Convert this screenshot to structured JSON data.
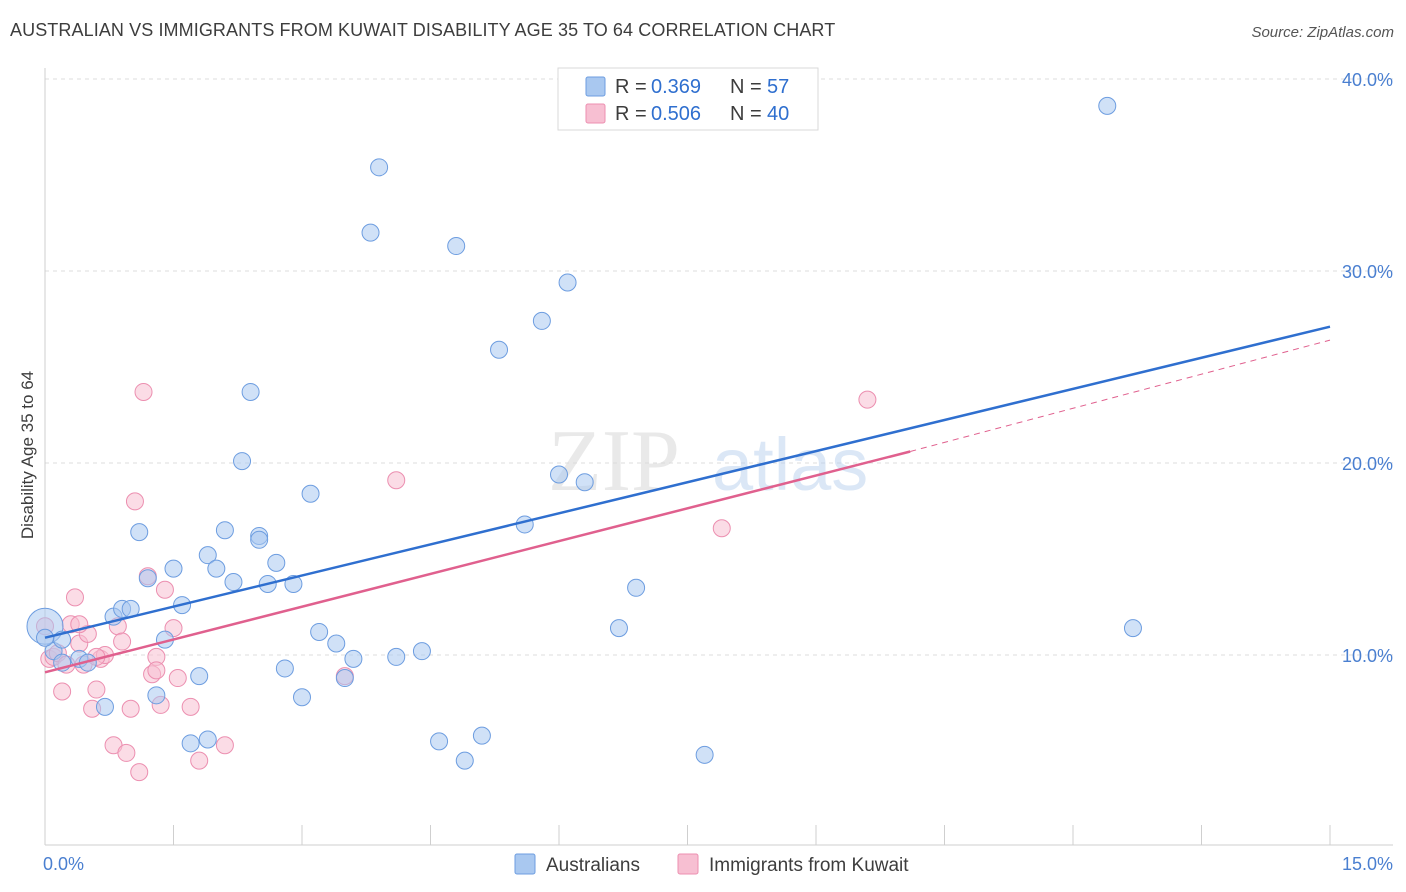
{
  "title": "AUSTRALIAN VS IMMIGRANTS FROM KUWAIT DISABILITY AGE 35 TO 64 CORRELATION CHART",
  "source": "Source: ZipAtlas.com",
  "watermark": {
    "zip": "ZIP",
    "atlas": "atlas"
  },
  "colors": {
    "blue_fill": "#a9c8f0",
    "blue_stroke": "#6d9de0",
    "blue_line": "#2f6fcf",
    "pink_fill": "#f7bfd2",
    "pink_stroke": "#ec8fb0",
    "pink_line": "#e0608e",
    "grid": "#dddddd",
    "tick_label": "#4a7fd0"
  },
  "legend": {
    "rows": [
      {
        "r_label": "R = ",
        "r_value": "0.369",
        "n_label": "N = ",
        "n_value": "57",
        "color": "blue"
      },
      {
        "r_label": "R = ",
        "r_value": "0.506",
        "n_label": "N = ",
        "n_value": "40",
        "color": "pink"
      }
    ]
  },
  "bottom_legend": [
    "Australians",
    "Immigrants from Kuwait"
  ],
  "chart_data": {
    "type": "scatter",
    "title": "AUSTRALIAN VS IMMIGRANTS FROM KUWAIT DISABILITY AGE 35 TO 64 CORRELATION CHART",
    "xlabel": "",
    "ylabel": "Disability Age 35 to 64",
    "xlim": [
      0,
      15
    ],
    "ylim": [
      1.5,
      42
    ],
    "x_tick_labels": [
      {
        "value": 0,
        "label": "0.0%"
      },
      {
        "value": 15,
        "label": "15.0%"
      }
    ],
    "y_tick_labels": [
      {
        "value": 10,
        "label": "10.0%"
      },
      {
        "value": 20,
        "label": "20.0%"
      },
      {
        "value": 30,
        "label": "30.0%"
      },
      {
        "value": 40,
        "label": "40.0%"
      }
    ],
    "grid": true,
    "series": [
      {
        "name": "Australians",
        "color": "blue",
        "points": [
          [
            0.0,
            11.5
          ],
          [
            0.1,
            10.2
          ],
          [
            0.2,
            10.8
          ],
          [
            0.2,
            9.6
          ],
          [
            0.4,
            9.8
          ],
          [
            0.5,
            9.6
          ],
          [
            0.7,
            7.3
          ],
          [
            0.8,
            12.0
          ],
          [
            0.9,
            12.4
          ],
          [
            1.0,
            12.4
          ],
          [
            1.1,
            16.4
          ],
          [
            1.2,
            14.0
          ],
          [
            1.3,
            7.9
          ],
          [
            1.4,
            10.8
          ],
          [
            1.5,
            14.5
          ],
          [
            1.6,
            12.6
          ],
          [
            1.7,
            5.4
          ],
          [
            1.8,
            8.9
          ],
          [
            1.9,
            5.6
          ],
          [
            1.9,
            15.2
          ],
          [
            2.0,
            14.5
          ],
          [
            2.1,
            16.5
          ],
          [
            2.2,
            13.8
          ],
          [
            2.3,
            20.1
          ],
          [
            2.4,
            23.7
          ],
          [
            2.5,
            16.2
          ],
          [
            2.5,
            16.0
          ],
          [
            2.6,
            13.7
          ],
          [
            2.7,
            14.8
          ],
          [
            2.8,
            9.3
          ],
          [
            2.9,
            13.7
          ],
          [
            3.0,
            7.8
          ],
          [
            3.1,
            18.4
          ],
          [
            3.2,
            11.2
          ],
          [
            3.4,
            10.6
          ],
          [
            3.5,
            8.8
          ],
          [
            3.6,
            9.8
          ],
          [
            3.8,
            32.0
          ],
          [
            3.9,
            35.4
          ],
          [
            4.1,
            9.9
          ],
          [
            4.4,
            10.2
          ],
          [
            4.6,
            5.5
          ],
          [
            4.8,
            31.3
          ],
          [
            4.9,
            4.5
          ],
          [
            5.1,
            5.8
          ],
          [
            5.3,
            25.9
          ],
          [
            5.6,
            16.8
          ],
          [
            5.8,
            27.4
          ],
          [
            6.0,
            19.4
          ],
          [
            6.1,
            29.4
          ],
          [
            6.3,
            19.0
          ],
          [
            6.7,
            11.4
          ],
          [
            6.9,
            13.5
          ],
          [
            7.7,
            4.8
          ],
          [
            12.4,
            38.6
          ],
          [
            12.7,
            11.4
          ],
          [
            0.0,
            10.9
          ]
        ],
        "trend": {
          "x": [
            0,
            15
          ],
          "y": [
            10.9,
            27.1
          ]
        }
      },
      {
        "name": "Immigrants from Kuwait",
        "color": "pink",
        "points": [
          [
            0.0,
            11.5
          ],
          [
            0.05,
            9.8
          ],
          [
            0.1,
            9.9
          ],
          [
            0.15,
            10.1
          ],
          [
            0.2,
            8.1
          ],
          [
            0.25,
            9.5
          ],
          [
            0.3,
            11.6
          ],
          [
            0.35,
            13.0
          ],
          [
            0.4,
            10.6
          ],
          [
            0.45,
            9.5
          ],
          [
            0.5,
            11.1
          ],
          [
            0.55,
            7.2
          ],
          [
            0.6,
            8.2
          ],
          [
            0.65,
            9.8
          ],
          [
            0.7,
            10.0
          ],
          [
            0.8,
            5.3
          ],
          [
            0.85,
            11.5
          ],
          [
            0.9,
            10.7
          ],
          [
            0.95,
            4.9
          ],
          [
            1.0,
            7.2
          ],
          [
            1.05,
            18.0
          ],
          [
            1.1,
            3.9
          ],
          [
            1.15,
            23.7
          ],
          [
            1.2,
            14.1
          ],
          [
            1.25,
            9.0
          ],
          [
            1.3,
            9.9
          ],
          [
            1.35,
            7.4
          ],
          [
            1.4,
            13.4
          ],
          [
            1.5,
            11.4
          ],
          [
            1.55,
            8.8
          ],
          [
            1.7,
            7.3
          ],
          [
            1.8,
            4.5
          ],
          [
            2.1,
            5.3
          ],
          [
            3.5,
            8.9
          ],
          [
            4.1,
            19.1
          ],
          [
            7.9,
            16.6
          ],
          [
            9.6,
            23.3
          ],
          [
            0.4,
            11.6
          ],
          [
            0.6,
            9.9
          ],
          [
            1.3,
            9.2
          ]
        ],
        "trend_solid": {
          "x": [
            0,
            10.1
          ],
          "y": [
            9.1,
            20.6
          ]
        },
        "trend_dashed": {
          "x": [
            10.1,
            15
          ],
          "y": [
            20.6,
            26.4
          ]
        }
      }
    ]
  }
}
